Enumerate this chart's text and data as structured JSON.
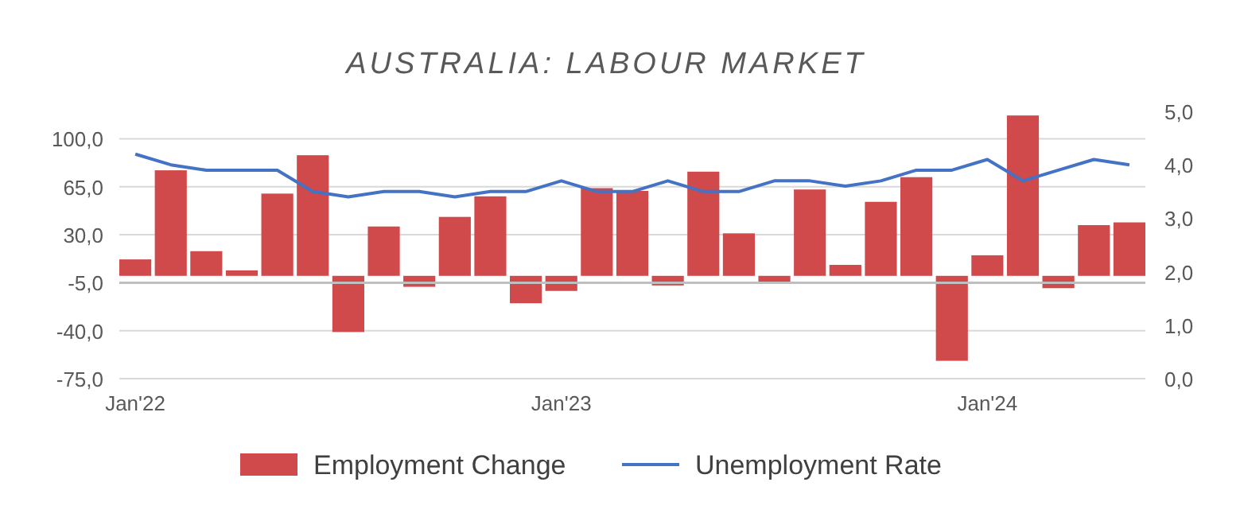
{
  "chart_data": {
    "type": "bar",
    "title": "AUSTRALIA: LABOUR MARKET",
    "categories": [
      "Jan'22",
      null,
      null,
      null,
      null,
      null,
      null,
      null,
      null,
      null,
      null,
      null,
      "Jan'23",
      null,
      null,
      null,
      null,
      null,
      null,
      null,
      null,
      null,
      null,
      null,
      "Jan'24",
      null,
      null,
      null,
      null
    ],
    "ref_lines": [
      {
        "axis": "y",
        "value": -5,
        "color": "#bfbfbf"
      }
    ],
    "series": [
      {
        "name": "Employment Change",
        "color": "#d0494b",
        "values": [
          12,
          77,
          18,
          4,
          60,
          88,
          -41,
          36,
          -8,
          43,
          58,
          -20,
          -11,
          64,
          62,
          -7,
          76,
          31,
          -5,
          63,
          8,
          54,
          72,
          -62,
          15,
          117,
          -9,
          37,
          39
        ]
      },
      {
        "name": "Unemployment Rate",
        "type": "line",
        "axis": "y2",
        "color": "#4472c4",
        "values": [
          4.2,
          4.0,
          3.9,
          3.9,
          3.9,
          3.5,
          3.4,
          3.5,
          3.5,
          3.4,
          3.5,
          3.5,
          3.7,
          3.5,
          3.5,
          3.7,
          3.5,
          3.5,
          3.7,
          3.7,
          3.6,
          3.7,
          3.9,
          3.9,
          4.1,
          3.7,
          3.9,
          4.1,
          4.0
        ]
      }
    ],
    "ylim": [
      -75,
      120
    ],
    "yticks": [
      {
        "value": 100,
        "label": "100,0"
      },
      {
        "value": 65,
        "label": "65,0"
      },
      {
        "value": 30,
        "label": "30,0"
      },
      {
        "value": -5,
        "label": "-5,0"
      },
      {
        "value": -40,
        "label": "-40,0"
      },
      {
        "value": -75,
        "label": "-75,0"
      }
    ],
    "y2lim": [
      0,
      5
    ],
    "y2ticks": [
      {
        "value": 0,
        "label": "0,0"
      },
      {
        "value": 1,
        "label": "1,0"
      },
      {
        "value": 2,
        "label": "2,0"
      },
      {
        "value": 3,
        "label": "3,0"
      },
      {
        "value": 4,
        "label": "4,0"
      },
      {
        "value": 5,
        "label": "5,0"
      }
    ],
    "grid": "y",
    "legend": "bottom",
    "marker": "none",
    "line_style": "solid"
  }
}
